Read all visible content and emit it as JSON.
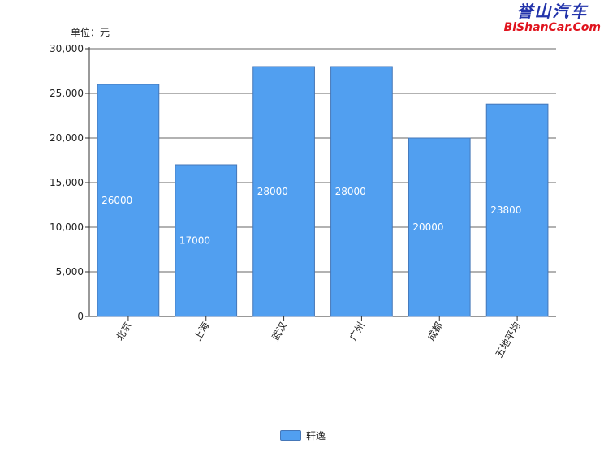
{
  "logo": {
    "cn": "誉山汽车",
    "en": "BiShanCar.Com"
  },
  "chart_data": {
    "type": "bar",
    "unit_label": "单位：元",
    "categories": [
      "北京",
      "上海",
      "武汉",
      "广州",
      "成都",
      "五地平均"
    ],
    "series": [
      {
        "name": "轩逸",
        "values": [
          26000,
          17000,
          28000,
          28000,
          20000,
          23800
        ],
        "color": "#519ff0"
      }
    ],
    "data_labels": [
      "26000",
      "17000",
      "28000",
      "28000",
      "20000",
      "23800"
    ],
    "yticks": [
      "0",
      "5,000",
      "10,000",
      "15,000",
      "20,000",
      "25,000",
      "30,000"
    ],
    "ylim": [
      0,
      30000
    ],
    "grid": true,
    "legend_position": "bottom-center"
  }
}
